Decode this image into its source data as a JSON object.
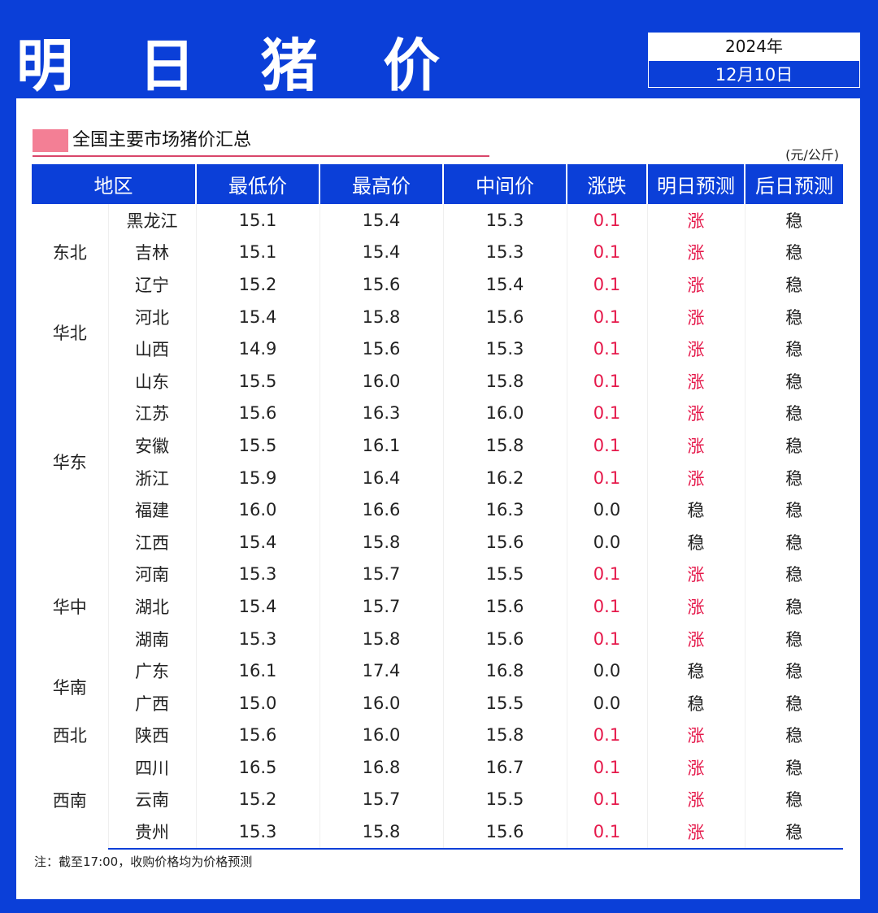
{
  "header": {
    "title": "明 日 猪 价",
    "year": "2024年",
    "date": "12月10日"
  },
  "section": {
    "title": "全国主要市场猪价汇总",
    "unit": "(元/公斤)"
  },
  "table": {
    "columns": [
      "地区",
      "最低价",
      "最高价",
      "中间价",
      "涨跌",
      "明日预测",
      "后日预测"
    ],
    "groups": [
      {
        "region": "东北",
        "rows": [
          {
            "province": "黑龙江",
            "low": "15.1",
            "high": "15.4",
            "mid": "15.3",
            "change": "0.1",
            "tomorrow": "涨",
            "after": "稳"
          },
          {
            "province": "吉林",
            "low": "15.1",
            "high": "15.4",
            "mid": "15.3",
            "change": "0.1",
            "tomorrow": "涨",
            "after": "稳"
          },
          {
            "province": "辽宁",
            "low": "15.2",
            "high": "15.6",
            "mid": "15.4",
            "change": "0.1",
            "tomorrow": "涨",
            "after": "稳"
          }
        ]
      },
      {
        "region": "华北",
        "rows": [
          {
            "province": "河北",
            "low": "15.4",
            "high": "15.8",
            "mid": "15.6",
            "change": "0.1",
            "tomorrow": "涨",
            "after": "稳"
          },
          {
            "province": "山西",
            "low": "14.9",
            "high": "15.6",
            "mid": "15.3",
            "change": "0.1",
            "tomorrow": "涨",
            "after": "稳"
          }
        ]
      },
      {
        "region": "华东",
        "rows": [
          {
            "province": "山东",
            "low": "15.5",
            "high": "16.0",
            "mid": "15.8",
            "change": "0.1",
            "tomorrow": "涨",
            "after": "稳"
          },
          {
            "province": "江苏",
            "low": "15.6",
            "high": "16.3",
            "mid": "16.0",
            "change": "0.1",
            "tomorrow": "涨",
            "after": "稳"
          },
          {
            "province": "安徽",
            "low": "15.5",
            "high": "16.1",
            "mid": "15.8",
            "change": "0.1",
            "tomorrow": "涨",
            "after": "稳"
          },
          {
            "province": "浙江",
            "low": "15.9",
            "high": "16.4",
            "mid": "16.2",
            "change": "0.1",
            "tomorrow": "涨",
            "after": "稳"
          },
          {
            "province": "福建",
            "low": "16.0",
            "high": "16.6",
            "mid": "16.3",
            "change": "0.0",
            "tomorrow": "稳",
            "after": "稳"
          },
          {
            "province": "江西",
            "low": "15.4",
            "high": "15.8",
            "mid": "15.6",
            "change": "0.0",
            "tomorrow": "稳",
            "after": "稳"
          }
        ]
      },
      {
        "region": "华中",
        "rows": [
          {
            "province": "河南",
            "low": "15.3",
            "high": "15.7",
            "mid": "15.5",
            "change": "0.1",
            "tomorrow": "涨",
            "after": "稳"
          },
          {
            "province": "湖北",
            "low": "15.4",
            "high": "15.7",
            "mid": "15.6",
            "change": "0.1",
            "tomorrow": "涨",
            "after": "稳"
          },
          {
            "province": "湖南",
            "low": "15.3",
            "high": "15.8",
            "mid": "15.6",
            "change": "0.1",
            "tomorrow": "涨",
            "after": "稳"
          }
        ]
      },
      {
        "region": "华南",
        "rows": [
          {
            "province": "广东",
            "low": "16.1",
            "high": "17.4",
            "mid": "16.8",
            "change": "0.0",
            "tomorrow": "稳",
            "after": "稳"
          },
          {
            "province": "广西",
            "low": "15.0",
            "high": "16.0",
            "mid": "15.5",
            "change": "0.0",
            "tomorrow": "稳",
            "after": "稳"
          }
        ]
      },
      {
        "region": "西北",
        "rows": [
          {
            "province": "陕西",
            "low": "15.6",
            "high": "16.0",
            "mid": "15.8",
            "change": "0.1",
            "tomorrow": "涨",
            "after": "稳"
          }
        ]
      },
      {
        "region": "西南",
        "rows": [
          {
            "province": "四川",
            "low": "16.5",
            "high": "16.8",
            "mid": "16.7",
            "change": "0.1",
            "tomorrow": "涨",
            "after": "稳"
          },
          {
            "province": "云南",
            "low": "15.2",
            "high": "15.7",
            "mid": "15.5",
            "change": "0.1",
            "tomorrow": "涨",
            "after": "稳"
          },
          {
            "province": "贵州",
            "low": "15.3",
            "high": "15.8",
            "mid": "15.6",
            "change": "0.1",
            "tomorrow": "涨",
            "after": "稳"
          }
        ]
      }
    ]
  },
  "note": "注：截至17:00，收购价格均为价格预测",
  "colors": {
    "brand_blue": "#0b3fd8",
    "rise_red": "#e5184a",
    "marker_pink": "#f2718a"
  }
}
